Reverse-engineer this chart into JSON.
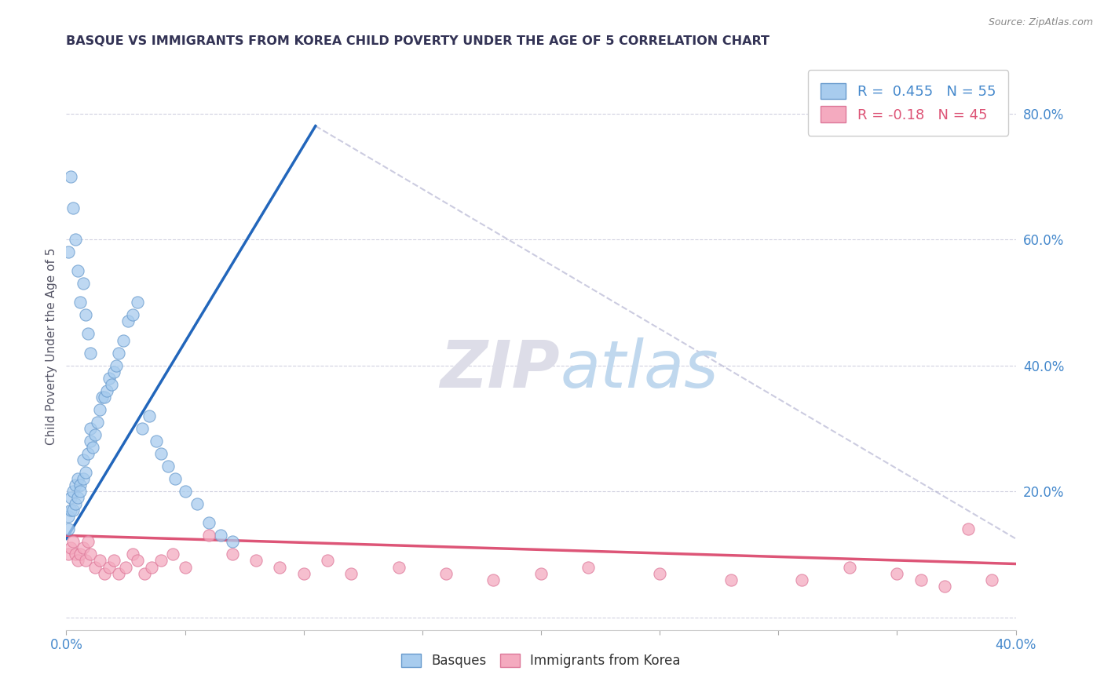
{
  "title": "BASQUE VS IMMIGRANTS FROM KOREA CHILD POVERTY UNDER THE AGE OF 5 CORRELATION CHART",
  "source": "Source: ZipAtlas.com",
  "ylabel": "Child Poverty Under the Age of 5",
  "xmin": 0.0,
  "xmax": 0.4,
  "ymin": -0.02,
  "ymax": 0.88,
  "blue_R": 0.455,
  "blue_N": 55,
  "pink_R": -0.18,
  "pink_N": 45,
  "blue_color": "#A8CCEE",
  "pink_color": "#F4AABF",
  "blue_edge_color": "#6699CC",
  "pink_edge_color": "#DD7799",
  "blue_line_color": "#2266BB",
  "pink_line_color": "#DD5577",
  "legend_label_blue": "Basques",
  "legend_label_pink": "Immigrants from Korea",
  "title_color": "#333355",
  "axis_label_color": "#4488CC",
  "background_color": "#FFFFFF",
  "blue_scatter_x": [
    0.001,
    0.001,
    0.002,
    0.002,
    0.003,
    0.003,
    0.004,
    0.004,
    0.005,
    0.005,
    0.006,
    0.006,
    0.007,
    0.007,
    0.008,
    0.009,
    0.01,
    0.01,
    0.011,
    0.012,
    0.013,
    0.014,
    0.015,
    0.016,
    0.017,
    0.018,
    0.019,
    0.02,
    0.021,
    0.022,
    0.024,
    0.026,
    0.028,
    0.03,
    0.032,
    0.035,
    0.038,
    0.04,
    0.043,
    0.046,
    0.05,
    0.055,
    0.06,
    0.065,
    0.07,
    0.001,
    0.002,
    0.003,
    0.004,
    0.005,
    0.006,
    0.007,
    0.008,
    0.009,
    0.01
  ],
  "blue_scatter_y": [
    0.14,
    0.16,
    0.17,
    0.19,
    0.17,
    0.2,
    0.21,
    0.18,
    0.19,
    0.22,
    0.21,
    0.2,
    0.22,
    0.25,
    0.23,
    0.26,
    0.28,
    0.3,
    0.27,
    0.29,
    0.31,
    0.33,
    0.35,
    0.35,
    0.36,
    0.38,
    0.37,
    0.39,
    0.4,
    0.42,
    0.44,
    0.47,
    0.48,
    0.5,
    0.3,
    0.32,
    0.28,
    0.26,
    0.24,
    0.22,
    0.2,
    0.18,
    0.15,
    0.13,
    0.12,
    0.58,
    0.7,
    0.65,
    0.6,
    0.55,
    0.5,
    0.53,
    0.48,
    0.45,
    0.42
  ],
  "pink_scatter_x": [
    0.001,
    0.002,
    0.003,
    0.004,
    0.005,
    0.006,
    0.007,
    0.008,
    0.009,
    0.01,
    0.012,
    0.014,
    0.016,
    0.018,
    0.02,
    0.022,
    0.025,
    0.028,
    0.03,
    0.033,
    0.036,
    0.04,
    0.045,
    0.05,
    0.06,
    0.07,
    0.08,
    0.09,
    0.1,
    0.11,
    0.12,
    0.14,
    0.16,
    0.18,
    0.2,
    0.22,
    0.25,
    0.28,
    0.31,
    0.33,
    0.35,
    0.36,
    0.37,
    0.38,
    0.39
  ],
  "pink_scatter_y": [
    0.1,
    0.11,
    0.12,
    0.1,
    0.09,
    0.1,
    0.11,
    0.09,
    0.12,
    0.1,
    0.08,
    0.09,
    0.07,
    0.08,
    0.09,
    0.07,
    0.08,
    0.1,
    0.09,
    0.07,
    0.08,
    0.09,
    0.1,
    0.08,
    0.13,
    0.1,
    0.09,
    0.08,
    0.07,
    0.09,
    0.07,
    0.08,
    0.07,
    0.06,
    0.07,
    0.08,
    0.07,
    0.06,
    0.06,
    0.08,
    0.07,
    0.06,
    0.05,
    0.14,
    0.06
  ],
  "blue_trendline_x": [
    0.0,
    0.105
  ],
  "blue_trendline_y": [
    0.125,
    0.78
  ],
  "pink_trendline_x": [
    0.0,
    0.4
  ],
  "pink_trendline_y": [
    0.13,
    0.085
  ],
  "diag_line_x": [
    0.105,
    0.4
  ],
  "diag_line_y": [
    0.78,
    0.125
  ]
}
